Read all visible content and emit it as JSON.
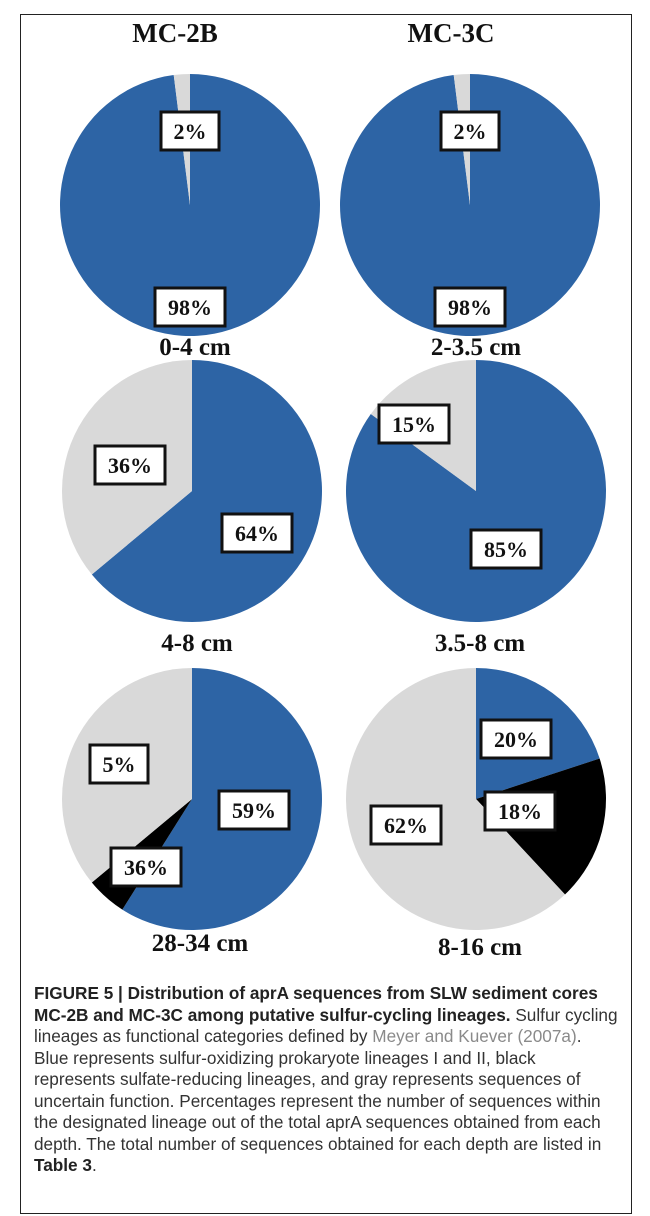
{
  "colors": {
    "blue": "#2d64a5",
    "black": "#000000",
    "gray": "#d9d9d9"
  },
  "chart_data": [
    {
      "type": "pie",
      "column_title": "MC-2B",
      "depth": "0-4 cm",
      "slices": [
        {
          "category": "sulfur-oxidizing",
          "value": 98,
          "label": "98%",
          "color": "blue"
        },
        {
          "category": "uncertain",
          "value": 2,
          "label": "2%",
          "color": "gray"
        }
      ]
    },
    {
      "type": "pie",
      "column_title": "MC-3C",
      "depth": "2-3.5 cm",
      "slices": [
        {
          "category": "sulfur-oxidizing",
          "value": 98,
          "label": "98%",
          "color": "blue"
        },
        {
          "category": "uncertain",
          "value": 2,
          "label": "2%",
          "color": "gray"
        }
      ]
    },
    {
      "type": "pie",
      "column_title": "MC-2B",
      "depth": "4-8 cm",
      "slices": [
        {
          "category": "sulfur-oxidizing",
          "value": 64,
          "label": "64%",
          "color": "blue"
        },
        {
          "category": "uncertain",
          "value": 36,
          "label": "36%",
          "color": "gray"
        }
      ]
    },
    {
      "type": "pie",
      "column_title": "MC-3C",
      "depth": "3.5-8 cm",
      "slices": [
        {
          "category": "sulfur-oxidizing",
          "value": 85,
          "label": "85%",
          "color": "blue"
        },
        {
          "category": "uncertain",
          "value": 15,
          "label": "15%",
          "color": "gray"
        }
      ]
    },
    {
      "type": "pie",
      "column_title": "MC-2B",
      "depth": "28-34 cm",
      "slices": [
        {
          "category": "sulfur-oxidizing",
          "value": 59,
          "label": "59%",
          "color": "blue"
        },
        {
          "category": "sulfate-reducing",
          "value": 5,
          "label": "5%",
          "color": "black"
        },
        {
          "category": "uncertain",
          "value": 36,
          "label": "36%",
          "color": "gray"
        }
      ]
    },
    {
      "type": "pie",
      "column_title": "MC-3C",
      "depth": "8-16 cm",
      "slices": [
        {
          "category": "sulfur-oxidizing",
          "value": 20,
          "label": "20%",
          "color": "blue"
        },
        {
          "category": "sulfate-reducing",
          "value": 18,
          "label": "18%",
          "color": "black"
        },
        {
          "category": "uncertain",
          "value": 62,
          "label": "62%",
          "color": "gray"
        }
      ]
    }
  ],
  "caption": {
    "title": "FIGURE 5 | Distribution of aprA sequences from SLW sediment cores MC-2B and MC-3C among putative sulfur-cycling lineages.",
    "body_1": " Sulfur cycling lineages as functional categories defined by ",
    "reference": "Meyer and Kuever (2007a)",
    "body_2": ". Blue represents sulfur-oxidizing prokaryote lineages I and II, black represents sulfate-reducing lineages, and gray represents sequences of uncertain function. Percentages represent the number of sequences within the designated lineage out of the total aprA sequences obtained from each depth. The total number of sequences obtained for each depth are listed in ",
    "table_ref": "Table 3",
    "end": "."
  }
}
